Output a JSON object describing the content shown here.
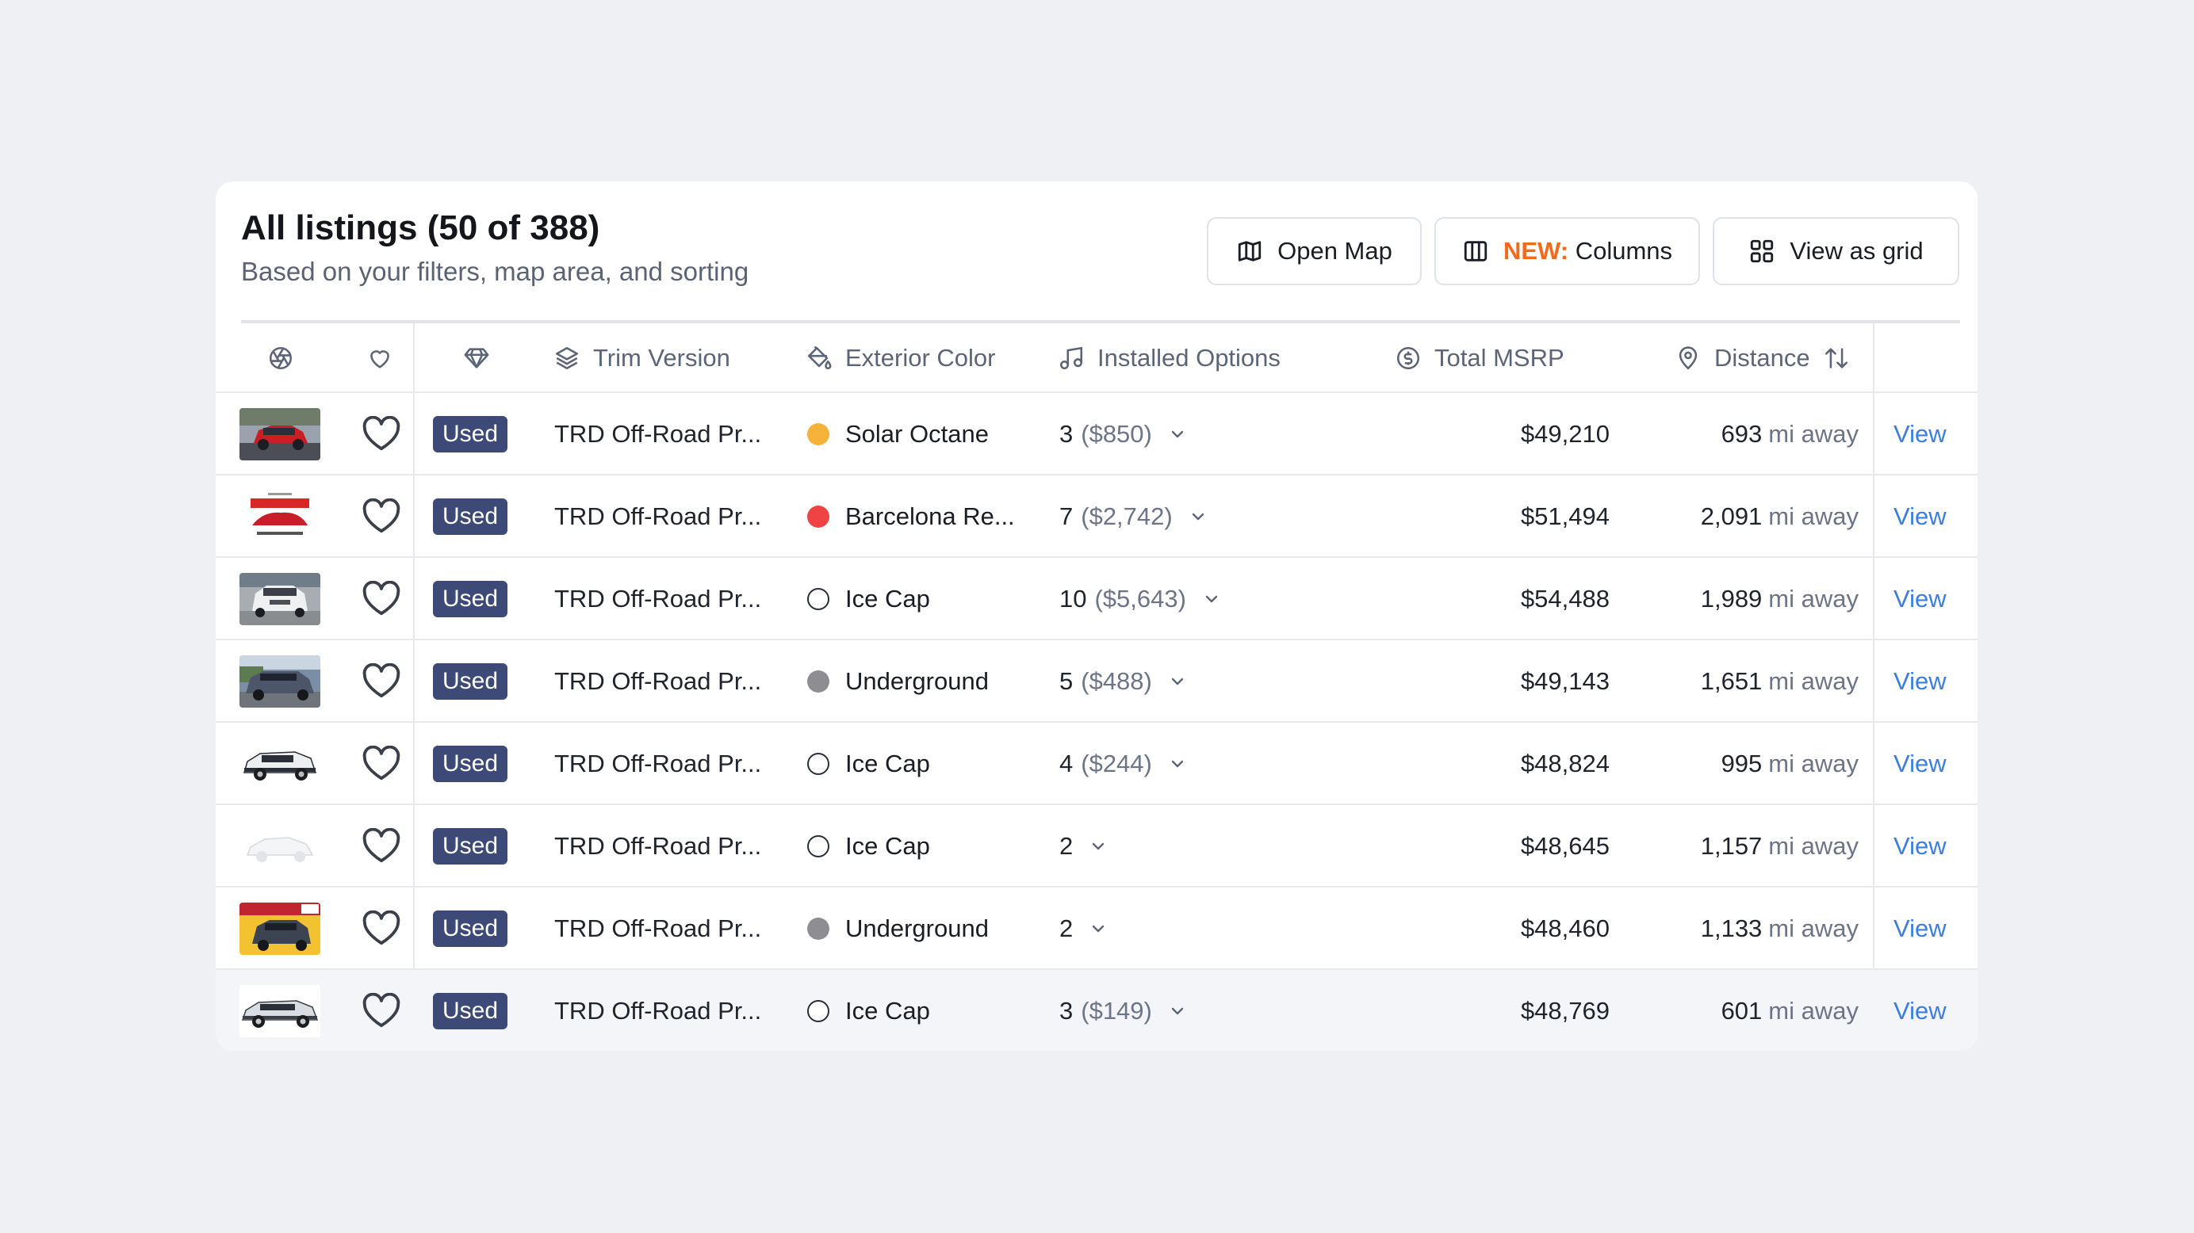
{
  "header": {
    "title": "All listings (50 of 388)",
    "subtitle": "Based on your filters, map area, and sorting",
    "open_map_label": "Open Map",
    "columns_new_tag": "NEW:",
    "columns_label": "Columns",
    "grid_label": "View as grid"
  },
  "columns": {
    "trim": "Trim Version",
    "color": "Exterior Color",
    "options": "Installed Options",
    "msrp": "Total MSRP",
    "distance": "Distance"
  },
  "distance_unit": "mi away",
  "view_label": "View",
  "rows": [
    {
      "thumb": "red-suv",
      "condition": "Used",
      "trim": "TRD Off-Road Pr...",
      "color_name": "Solar Octane",
      "color_hex": "#f7b23b",
      "outline": false,
      "options_count": "3",
      "options_price": "($850)",
      "msrp": "$49,210",
      "distance": "693"
    },
    {
      "thumb": "surprise",
      "condition": "Used",
      "trim": "TRD Off-Road Pr...",
      "color_name": "Barcelona Re...",
      "color_hex": "#ef4444",
      "outline": false,
      "options_count": "7",
      "options_price": "($2,742)",
      "msrp": "$51,494",
      "distance": "2,091"
    },
    {
      "thumb": "white-suv-front",
      "condition": "Used",
      "trim": "TRD Off-Road Pr...",
      "color_name": "Ice Cap",
      "color_hex": "#ffffff",
      "outline": true,
      "options_count": "10",
      "options_price": "($5,643)",
      "msrp": "$54,488",
      "distance": "1,989"
    },
    {
      "thumb": "gray-suv-lot",
      "condition": "Used",
      "trim": "TRD Off-Road Pr...",
      "color_name": "Underground",
      "color_hex": "#8e8e92",
      "outline": false,
      "options_count": "5",
      "options_price": "($488)",
      "msrp": "$49,143",
      "distance": "1,651"
    },
    {
      "thumb": "white-suv-side",
      "condition": "Used",
      "trim": "TRD Off-Road Pr...",
      "color_name": "Ice Cap",
      "color_hex": "#ffffff",
      "outline": true,
      "options_count": "4",
      "options_price": "($244)",
      "msrp": "$48,824",
      "distance": "995"
    },
    {
      "thumb": "placeholder-car",
      "condition": "Used",
      "trim": "TRD Off-Road Pr...",
      "color_name": "Ice Cap",
      "color_hex": "#ffffff",
      "outline": true,
      "options_count": "2",
      "options_price": "",
      "msrp": "$48,645",
      "distance": "1,157"
    },
    {
      "thumb": "promo-suv",
      "condition": "Used",
      "trim": "TRD Off-Road Pr...",
      "color_name": "Underground",
      "color_hex": "#8e8e92",
      "outline": false,
      "options_count": "2",
      "options_price": "",
      "msrp": "$48,460",
      "distance": "1,133"
    },
    {
      "thumb": "silver-suv-side",
      "condition": "Used",
      "trim": "TRD Off-Road Pr...",
      "color_name": "Ice Cap",
      "color_hex": "#ffffff",
      "outline": true,
      "options_count": "3",
      "options_price": "($149)",
      "msrp": "$48,769",
      "distance": "601"
    }
  ]
}
